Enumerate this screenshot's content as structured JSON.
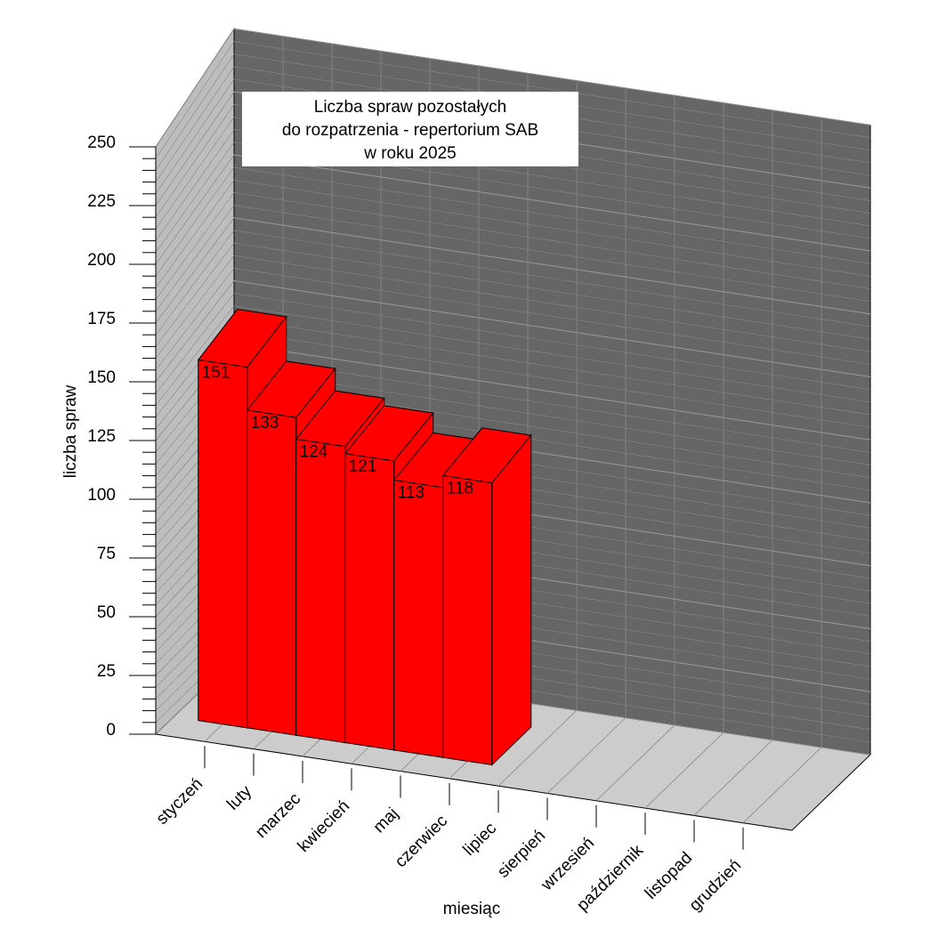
{
  "chart_data": {
    "type": "bar3d",
    "title": [
      "Liczba spraw pozostałych",
      "do rozpatrzenia - repertorium SAB",
      "w roku 2025"
    ],
    "x_label": "miesiąc",
    "y_label": "liczba spraw",
    "categories": [
      "styczeń",
      "luty",
      "marzec",
      "kwiecień",
      "maj",
      "czerwiec",
      "lipiec",
      "sierpień",
      "wrzesień",
      "październik",
      "listopad",
      "grudzień"
    ],
    "values": [
      151,
      133,
      124,
      121,
      113,
      118,
      null,
      null,
      null,
      null,
      null,
      null
    ],
    "color": "#ff0000",
    "ylim": [
      0,
      250
    ],
    "yticks": [
      0,
      25,
      50,
      75,
      100,
      125,
      150,
      175,
      200,
      225,
      250
    ],
    "grid": true
  }
}
